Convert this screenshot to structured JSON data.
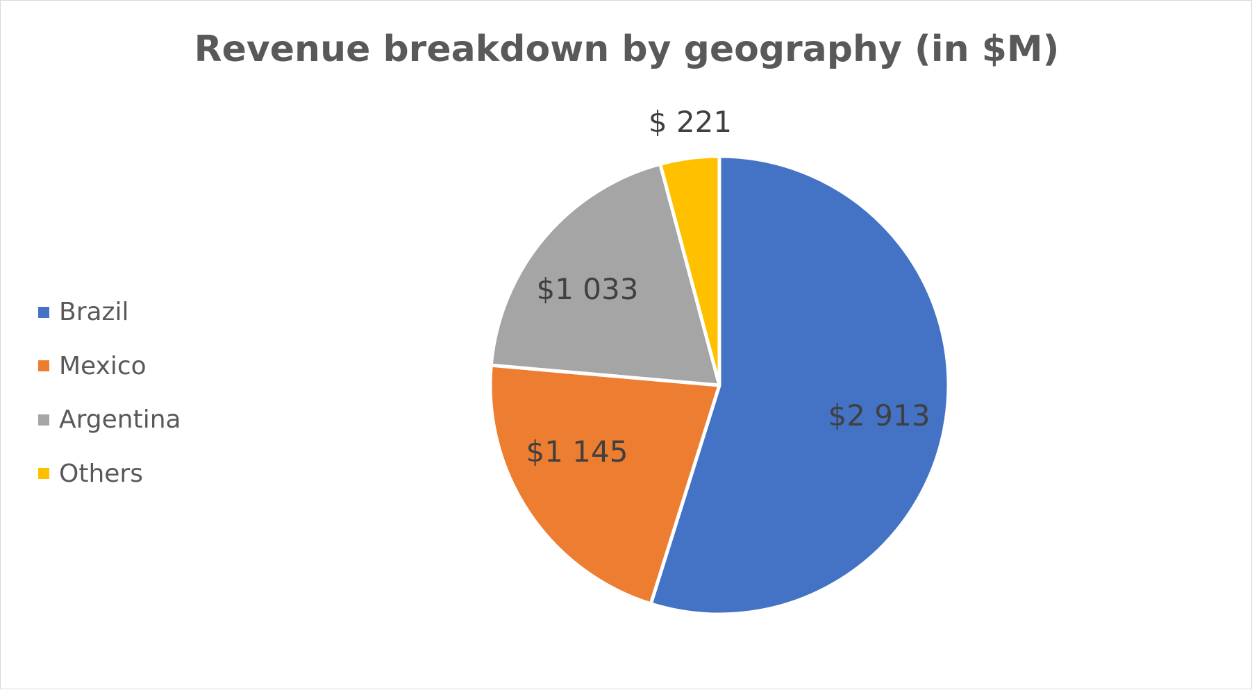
{
  "chart_data": {
    "type": "pie",
    "title": "Revenue breakdown by geography (in $M)",
    "categories": [
      "Brazil",
      "Mexico",
      "Argentina",
      "Others"
    ],
    "values": [
      2913,
      1145,
      1033,
      221
    ],
    "data_labels": [
      "$2 913",
      "$1 145",
      "$1 033",
      "$ 221"
    ],
    "colors": [
      "#4472C4",
      "#ED7D31",
      "#A5A5A5",
      "#FFC000"
    ],
    "legend_position": "left",
    "start_angle": "12 o'clock",
    "direction": "clockwise"
  }
}
